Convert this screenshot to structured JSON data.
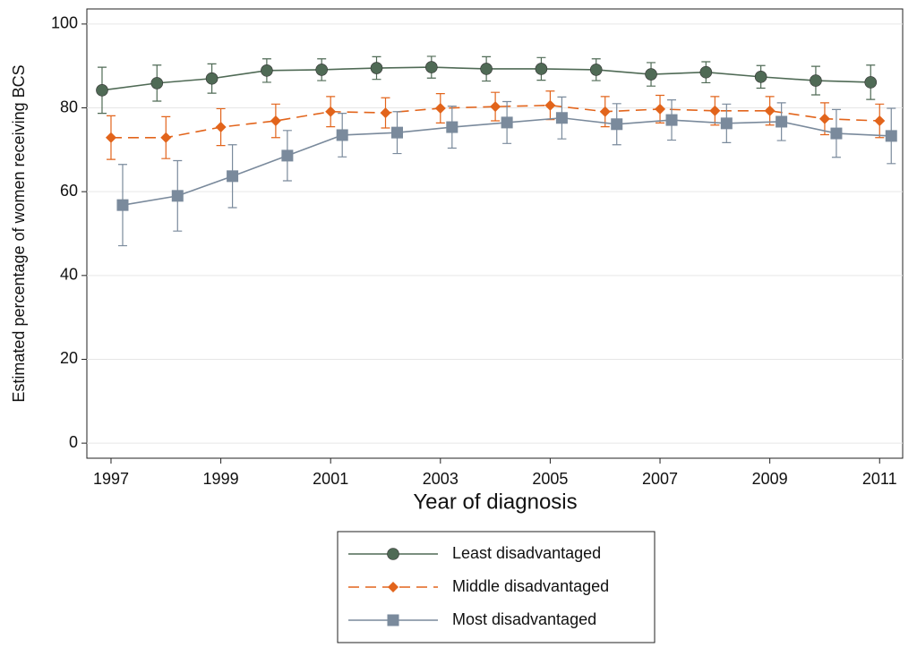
{
  "chart_data": {
    "type": "line",
    "x_label": "Year of diagnosis",
    "y_label": "Estimated percentage of women receiving BCS",
    "x": [
      1997,
      1998,
      1999,
      2000,
      2001,
      2002,
      2003,
      2004,
      2005,
      2006,
      2007,
      2008,
      2009,
      2010,
      2011
    ],
    "xlim": [
      1996.56,
      2011.42
    ],
    "xticks": [
      1997,
      1999,
      2001,
      2003,
      2005,
      2007,
      2009,
      2011
    ],
    "ylim": [
      -3.6,
      103.6
    ],
    "yticks": [
      0,
      20,
      40,
      60,
      80,
      100
    ],
    "grid": true,
    "series": [
      {
        "name": "Least disadvantaged",
        "color": "#4f6a55",
        "marker": "circle",
        "dashed": false,
        "values": [
          84.2,
          85.9,
          87.0,
          88.9,
          89.1,
          89.5,
          89.7,
          89.3,
          89.3,
          89.1,
          88.0,
          88.5,
          87.4,
          86.5,
          86.1
        ],
        "errors": [
          5.5,
          4.3,
          3.5,
          2.8,
          2.6,
          2.7,
          2.6,
          2.9,
          2.7,
          2.6,
          2.8,
          2.5,
          2.7,
          3.4,
          4.1
        ]
      },
      {
        "name": "Middle disadvantaged",
        "color": "#e2641b",
        "marker": "diamond",
        "dashed": true,
        "values": [
          72.9,
          72.9,
          75.4,
          76.9,
          79.1,
          78.8,
          79.9,
          80.3,
          80.6,
          79.1,
          79.7,
          79.3,
          79.3,
          77.4,
          76.9
        ],
        "errors": [
          5.2,
          5.0,
          4.4,
          4.0,
          3.6,
          3.6,
          3.5,
          3.4,
          3.4,
          3.6,
          3.3,
          3.4,
          3.4,
          3.8,
          4.0
        ]
      },
      {
        "name": "Most disadvantaged",
        "color": "#7a8a9c",
        "marker": "square",
        "dashed": false,
        "values": [
          56.8,
          59.0,
          63.7,
          68.6,
          73.5,
          74.1,
          75.4,
          76.5,
          77.6,
          76.1,
          77.1,
          76.3,
          76.7,
          73.9,
          73.3
        ],
        "errors": [
          9.7,
          8.4,
          7.5,
          6.0,
          5.2,
          5.0,
          5.0,
          5.0,
          5.0,
          4.9,
          4.8,
          4.6,
          4.5,
          5.7,
          6.6
        ]
      }
    ]
  }
}
